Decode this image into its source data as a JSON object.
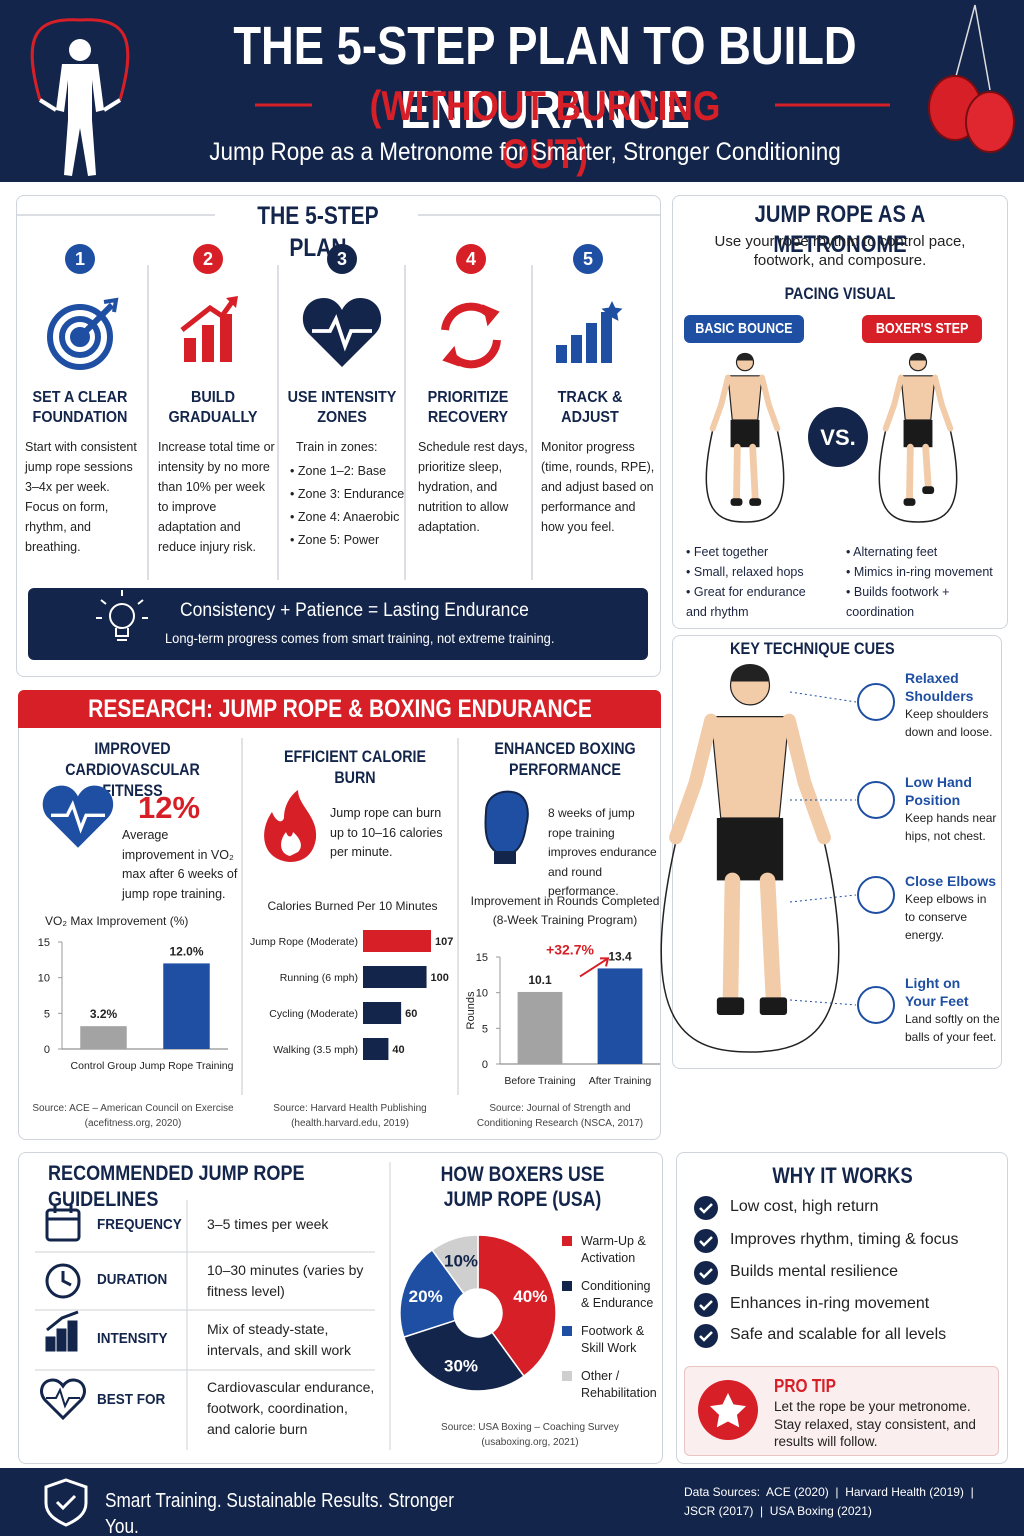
{
  "header": {
    "title": "THE 5-STEP PLAN TO BUILD ENDURANCE",
    "subtitle": "(WITHOUT BURNING OUT)",
    "tagline": "Jump Rope as a Metronome for Smarter, Stronger Conditioning"
  },
  "plan": {
    "title": "THE 5-STEP PLAN",
    "steps": [
      {
        "number": "1",
        "title": "SET A CLEAR FOUNDATION",
        "text": "Start with consistent jump rope sessions 3–4x per week. Focus on form, rhythm, and breathing."
      },
      {
        "number": "2",
        "title": "BUILD GRADUALLY",
        "text": "Increase total time or intensity by no more than 10% per week to improve adaptation and reduce injury risk."
      },
      {
        "number": "3",
        "title": "USE INTENSITY ZONES",
        "intro": "Train in zones:",
        "items": [
          "Zone 1–2: Base",
          "Zone 3: Endurance",
          "Zone 4: Anaerobic",
          "Zone 5: Power"
        ]
      },
      {
        "number": "4",
        "title": "PRIORITIZE RECOVERY",
        "text": "Schedule rest days, prioritize sleep, hydration, and nutrition to allow adaptation."
      },
      {
        "number": "5",
        "title": "TRACK & ADJUST",
        "text": "Monitor progress (time, rounds, RPE), and adjust based on performance and how you feel."
      }
    ],
    "banner": {
      "title": "Consistency + Patience = Lasting Endurance",
      "text": "Long-term progress comes from smart training, not extreme training."
    }
  },
  "metronome": {
    "title": "JUMP ROPE AS A METRONOME",
    "text": "Use your rope rhythm to control pace, footwork, and composure.",
    "visual_title": "PACING VISUAL",
    "vs": "VS.",
    "styles": [
      {
        "label": "BASIC BOUNCE",
        "points": [
          "Feet together",
          "Small, relaxed hops",
          "Great for endurance and rhythm"
        ]
      },
      {
        "label": "BOXER'S STEP",
        "points": [
          "Alternating feet",
          "Mimics in-ring movement",
          "Builds footwork + coordination"
        ]
      }
    ]
  },
  "cues": {
    "title": "KEY TECHNIQUE CUES",
    "items": [
      {
        "title": "Relaxed Shoulders",
        "text": "Keep shoulders down and loose."
      },
      {
        "title": "Low Hand Position",
        "text": "Keep hands near hips, not chest."
      },
      {
        "title": "Close Elbows",
        "text": "Keep elbows in to conserve energy."
      },
      {
        "title": "Light on Your Feet",
        "text": "Land softly on the balls of your feet."
      }
    ]
  },
  "research": {
    "title": "RESEARCH: JUMP ROPE & BOXING ENDURANCE",
    "columns": [
      {
        "title": "IMPROVED CARDIOVASCULAR FITNESS",
        "stat": "12%",
        "text": "Average improvement in VO₂ max after 6 weeks of jump rope training.",
        "source": "Source: ACE – American Council on Exercise (acefitness.org, 2020)"
      },
      {
        "title": "EFFICIENT CALORIE BURN",
        "text": "Jump rope can burn up to 10–16 calories per minute.",
        "source": "Source: Harvard Health Publishing (health.harvard.edu, 2019)"
      },
      {
        "title": "ENHANCED BOXING PERFORMANCE",
        "text": "8 weeks of jump rope training improves endurance and round performance.",
        "source": "Source: Journal of Strength and Conditioning Research (NSCA, 2017)"
      }
    ]
  },
  "chart_data": [
    {
      "type": "bar",
      "title": "VO₂ Max Improvement (%)",
      "categories": [
        "Control Group",
        "Jump Rope Training"
      ],
      "values": [
        3.2,
        12.0
      ],
      "value_labels": [
        "3.2%",
        "12.0%"
      ],
      "colors": [
        "#a3a3a3",
        "#1e4fa3"
      ],
      "ylim": [
        0,
        15
      ],
      "yticks": [
        0,
        5,
        10,
        15
      ],
      "grid": false
    },
    {
      "type": "hbar",
      "title": "Calories Burned Per 10 Minutes",
      "categories": [
        "Jump Rope (Moderate)",
        "Running (6 mph)",
        "Cycling (Moderate)",
        "Walking (3.5 mph)"
      ],
      "values": [
        107,
        100,
        60,
        40
      ],
      "colors": [
        "#d71f27",
        "#13254a",
        "#13254a",
        "#13254a"
      ]
    },
    {
      "type": "bar",
      "title": "Improvement in Rounds Completed (8-Week Training Program)",
      "ylabel": "Rounds",
      "categories": [
        "Before Training",
        "After Training"
      ],
      "values": [
        10.1,
        13.4
      ],
      "colors": [
        "#a3a3a3",
        "#1e4fa3"
      ],
      "ylim": [
        0,
        15
      ],
      "yticks": [
        0,
        5,
        10,
        15
      ],
      "grid": false,
      "annotation": "+32.7%"
    },
    {
      "type": "pie",
      "title": "HOW BOXERS USE JUMP ROPE (USA)",
      "categories": [
        "Warm-Up & Activation",
        "Conditioning & Endurance",
        "Footwork & Skill Work",
        "Other / Rehabilitation"
      ],
      "values": [
        40,
        30,
        20,
        10
      ],
      "value_labels": [
        "40%",
        "30%",
        "20%",
        "10%"
      ],
      "colors": [
        "#d71f27",
        "#13254a",
        "#1e4fa3",
        "#cfcfcf"
      ],
      "source": "Source: USA Boxing – Coaching Survey (usaboxing.org, 2021)"
    }
  ],
  "guidelines": {
    "title": "RECOMMENDED JUMP ROPE GUIDELINES",
    "rows": [
      {
        "label": "FREQUENCY",
        "text": "3–5 times per week"
      },
      {
        "label": "DURATION",
        "text": "10–30 minutes (varies by fitness level)"
      },
      {
        "label": "INTENSITY",
        "text": "Mix of steady-state, intervals, and skill work"
      },
      {
        "label": "BEST FOR",
        "text": "Cardiovascular endurance, footwork, coordination, and calorie burn"
      }
    ]
  },
  "why": {
    "title": "WHY IT WORKS",
    "items": [
      "Low cost, high return",
      "Improves rhythm, timing & focus",
      "Builds mental resilience",
      "Enhances in-ring movement",
      "Safe and scalable for all levels"
    ],
    "tip": {
      "title": "PRO TIP",
      "text": "Let the rope be your metronome. Stay relaxed, stay consistent, and results will follow."
    }
  },
  "footer": {
    "slogan": "Smart Training. Sustainable Results. Stronger You.",
    "sources": "Data Sources:  ACE (2020)  |  Harvard Health (2019)  |  JSCR (2017)  |  USA Boxing (2021)"
  }
}
